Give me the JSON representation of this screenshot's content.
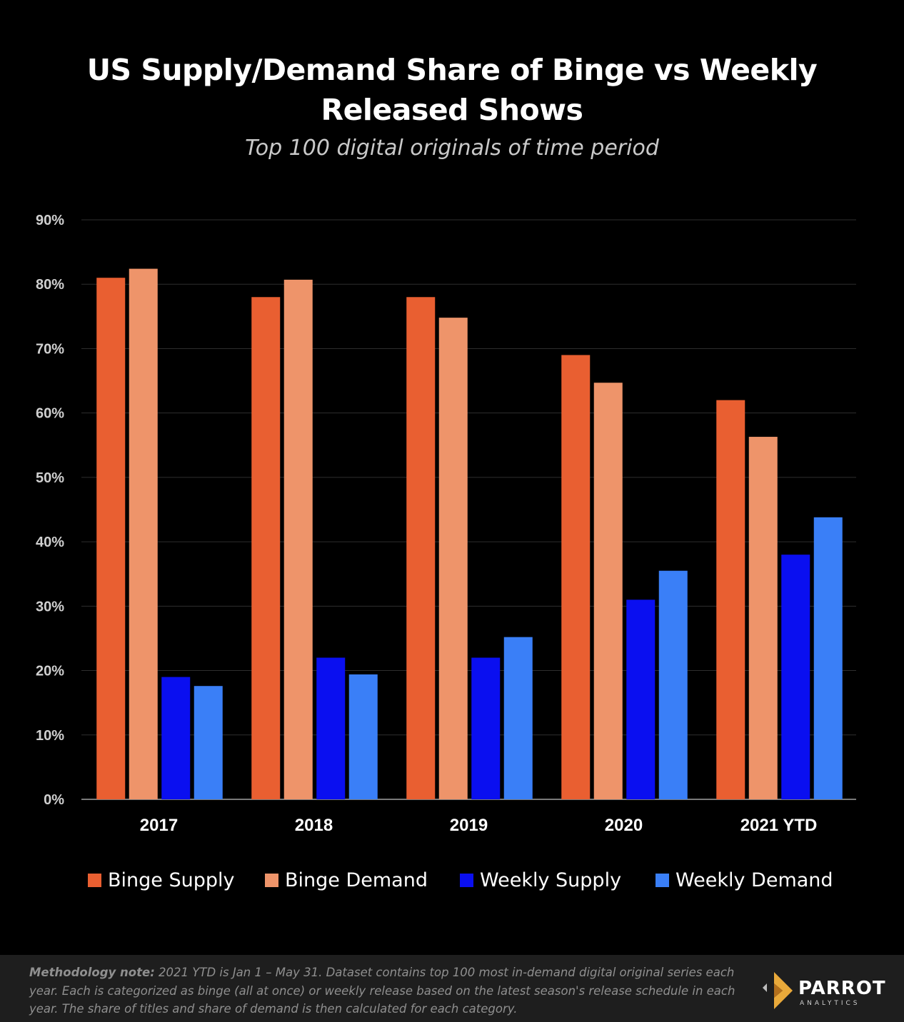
{
  "title_line1": "US Supply/Demand Share of Binge vs Weekly",
  "title_line2": "Released Shows",
  "subtitle": "Top 100 digital originals of time period",
  "chart_data": {
    "type": "bar",
    "title": "US Supply/Demand Share of Binge vs Weekly Released Shows",
    "subtitle": "Top 100 digital originals of time period",
    "categories": [
      "2017",
      "2018",
      "2019",
      "2020",
      "2021 YTD"
    ],
    "series": [
      {
        "name": "Binge Supply",
        "color": "#e95f31",
        "values": [
          81,
          78,
          78,
          69,
          62
        ]
      },
      {
        "name": "Binge Demand",
        "color": "#ee946a",
        "values": [
          82.4,
          80.7,
          74.8,
          64.7,
          56.3
        ]
      },
      {
        "name": "Weekly Supply",
        "color": "#0a0ff0",
        "values": [
          19,
          22,
          22,
          31,
          38
        ]
      },
      {
        "name": "Weekly Demand",
        "color": "#3a7ff7",
        "values": [
          17.6,
          19.4,
          25.2,
          35.5,
          43.8
        ]
      }
    ],
    "yticks": [
      "0%",
      "10%",
      "20%",
      "30%",
      "40%",
      "50%",
      "60%",
      "70%",
      "80%",
      "90%"
    ],
    "ylim": [
      0,
      90
    ],
    "xlabel": "",
    "ylabel": "",
    "grid": true,
    "legend": "bottom"
  },
  "footer": {
    "note_label": "Methodology note:",
    "note_text": "2021 YTD is Jan 1 – May 31.  Dataset contains top 100 most in-demand digital original series each year. Each is categorized as binge (all at once) or weekly release based on the latest season's release schedule in each year. The share of titles and share of demand is then calculated for each category.",
    "logo_name": "PARROT",
    "logo_sub": "ANALYTICS"
  }
}
